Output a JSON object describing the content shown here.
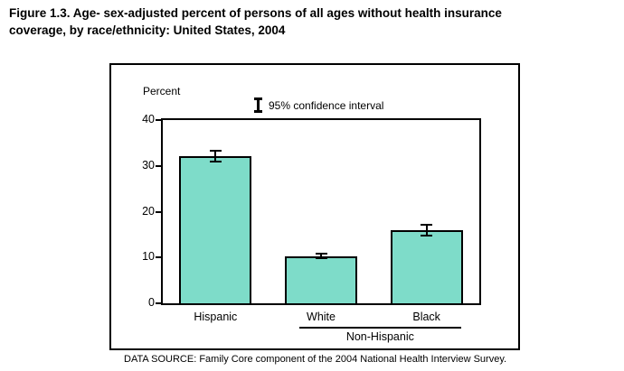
{
  "figure": {
    "title": "Figure 1.3. Age- sex-adjusted percent of persons of all ages without health insurance coverage, by race/ethnicity: United States, 2004",
    "data_source": "DATA SOURCE: Family Core component of the 2004 National Health Interview Survey."
  },
  "chart_data": {
    "type": "bar",
    "title": "Age- sex-adjusted percent of persons of all ages without health insurance coverage, by race/ethnicity: United States, 2004",
    "ylabel": "Percent",
    "xlabel": "",
    "ylim": [
      0,
      40
    ],
    "yticks": [
      0,
      10,
      20,
      30,
      40
    ],
    "grid": false,
    "legend": {
      "icon": "error-bar-i-beam-icon",
      "label": "95% confidence interval",
      "position": "top-center"
    },
    "categories": [
      "Hispanic",
      "White",
      "Black"
    ],
    "values": [
      32.1,
      10.3,
      16.0
    ],
    "ci_low": [
      30.8,
      9.7,
      14.6
    ],
    "ci_high": [
      33.4,
      11.0,
      17.4
    ],
    "group_bracket": {
      "label": "Non-Hispanic",
      "categories": [
        "White",
        "Black"
      ]
    },
    "colors": {
      "bar_fill": "#7edcc9",
      "bar_border": "#000000",
      "error_bar": "#000000"
    }
  }
}
